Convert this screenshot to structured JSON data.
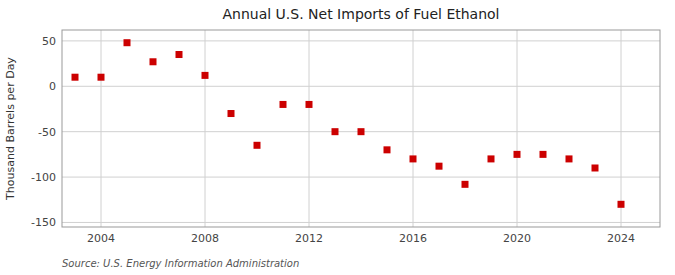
{
  "chart_data": {
    "type": "scatter",
    "title": "Annual U.S. Net Imports of Fuel Ethanol",
    "ylabel": "Thousand Barrels per Day",
    "annotations": [
      "Source: U.S. Energy Information Administration"
    ],
    "x": [
      2003,
      2004,
      2005,
      2006,
      2007,
      2008,
      2009,
      2010,
      2011,
      2012,
      2013,
      2014,
      2015,
      2016,
      2017,
      2018,
      2019,
      2020,
      2021,
      2022,
      2023,
      2024
    ],
    "values": [
      10,
      10,
      48,
      27,
      35,
      12,
      -30,
      -65,
      -20,
      -20,
      -50,
      -50,
      -70,
      -80,
      -88,
      -108,
      -80,
      -75,
      -75,
      -80,
      -90,
      -130
    ],
    "color": "#cc0000",
    "marker": "square",
    "xlim": [
      2002.5,
      2025.5
    ],
    "xticks": [
      2004,
      2008,
      2012,
      2016,
      2020,
      2024
    ],
    "ylim": [
      -155,
      62
    ],
    "yticks": [
      -150,
      -100,
      -50,
      0,
      50
    ],
    "grid": true
  }
}
